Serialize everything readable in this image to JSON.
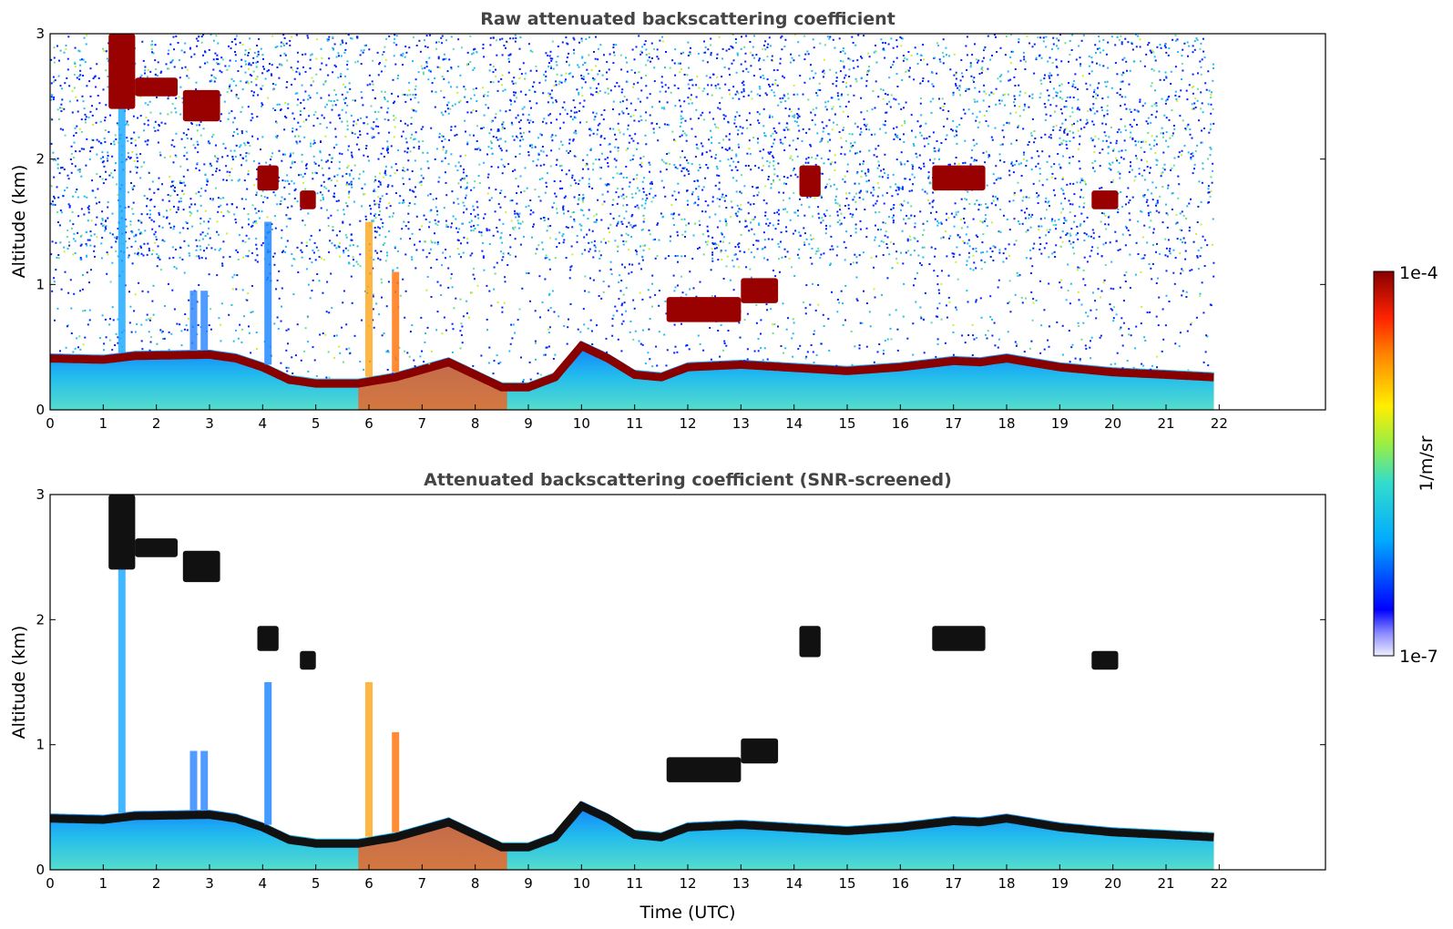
{
  "chart_data": [
    {
      "type": "heatmap",
      "title": "Raw attenuated backscattering coefficient",
      "xlabel": "",
      "ylabel": "Altitude (km)",
      "xlim": [
        0,
        24
      ],
      "ylim": [
        0,
        3
      ],
      "xticks": [
        "0",
        "1",
        "2",
        "3",
        "4",
        "5",
        "6",
        "7",
        "8",
        "9",
        "10",
        "11",
        "12",
        "13",
        "14",
        "15",
        "16",
        "17",
        "18",
        "19",
        "20",
        "21",
        "22"
      ],
      "yticks": [
        "0",
        "1",
        "2",
        "3"
      ],
      "data_end_time": 21.9,
      "boundary_layer_top_km": [
        [
          0,
          0.45
        ],
        [
          1,
          0.44
        ],
        [
          1.6,
          0.47
        ],
        [
          3,
          0.48
        ],
        [
          3.5,
          0.45
        ],
        [
          4,
          0.38
        ],
        [
          4.5,
          0.28
        ],
        [
          5,
          0.25
        ],
        [
          5.8,
          0.25
        ],
        [
          6.5,
          0.3
        ],
        [
          7,
          0.36
        ],
        [
          7.5,
          0.42
        ],
        [
          8,
          0.32
        ],
        [
          8.5,
          0.22
        ],
        [
          9,
          0.22
        ],
        [
          9.5,
          0.3
        ],
        [
          10,
          0.55
        ],
        [
          10.5,
          0.45
        ],
        [
          11,
          0.32
        ],
        [
          11.5,
          0.3
        ],
        [
          12,
          0.38
        ],
        [
          13,
          0.4
        ],
        [
          15,
          0.35
        ],
        [
          16,
          0.38
        ],
        [
          17,
          0.43
        ],
        [
          17.5,
          0.42
        ],
        [
          18,
          0.45
        ],
        [
          19,
          0.38
        ],
        [
          20,
          0.34
        ],
        [
          21,
          0.32
        ],
        [
          21.9,
          0.3
        ]
      ],
      "cloud_layers": [
        {
          "t0": 1.1,
          "t1": 1.6,
          "alt_top": 3.0,
          "alt_bottom": 2.4
        },
        {
          "t0": 1.6,
          "t1": 2.4,
          "alt_top": 2.65,
          "alt_bottom": 2.5
        },
        {
          "t0": 2.5,
          "t1": 3.2,
          "alt_top": 2.55,
          "alt_bottom": 2.3
        },
        {
          "t0": 3.9,
          "t1": 4.3,
          "alt_top": 1.95,
          "alt_bottom": 1.75
        },
        {
          "t0": 4.7,
          "t1": 5.0,
          "alt_top": 1.75,
          "alt_bottom": 1.6
        },
        {
          "t0": 11.6,
          "t1": 13.0,
          "alt_top": 0.9,
          "alt_bottom": 0.7
        },
        {
          "t0": 13.0,
          "t1": 13.7,
          "alt_top": 1.05,
          "alt_bottom": 0.85
        },
        {
          "t0": 14.1,
          "t1": 14.5,
          "alt_top": 1.95,
          "alt_bottom": 1.7
        },
        {
          "t0": 16.6,
          "t1": 17.6,
          "alt_top": 1.95,
          "alt_bottom": 1.75
        },
        {
          "t0": 19.6,
          "t1": 20.1,
          "alt_top": 1.75,
          "alt_bottom": 1.6
        }
      ]
    },
    {
      "type": "heatmap",
      "title": "Attenuated backscattering coefficient (SNR-screened)",
      "xlabel": "Time (UTC)",
      "ylabel": "Altitude (km)",
      "xlim": [
        0,
        24
      ],
      "ylim": [
        0,
        3
      ],
      "xticks": [
        "0",
        "1",
        "2",
        "3",
        "4",
        "5",
        "6",
        "7",
        "8",
        "9",
        "10",
        "11",
        "12",
        "13",
        "14",
        "15",
        "16",
        "17",
        "18",
        "19",
        "20",
        "21",
        "22"
      ],
      "yticks": [
        "0",
        "1",
        "2",
        "3"
      ],
      "data_end_time": 21.9
    }
  ],
  "colorbar": {
    "label": "1/m/sr",
    "max_label": "1e-4",
    "min_label": "1e-7",
    "scale": "log",
    "range": [
      1e-07,
      0.0001
    ],
    "colormap": [
      "#e8e8f8",
      "#0000ff",
      "#00aaff",
      "#33ddcc",
      "#aaee33",
      "#ffee00",
      "#ff8800",
      "#ff2200",
      "#990000"
    ]
  }
}
